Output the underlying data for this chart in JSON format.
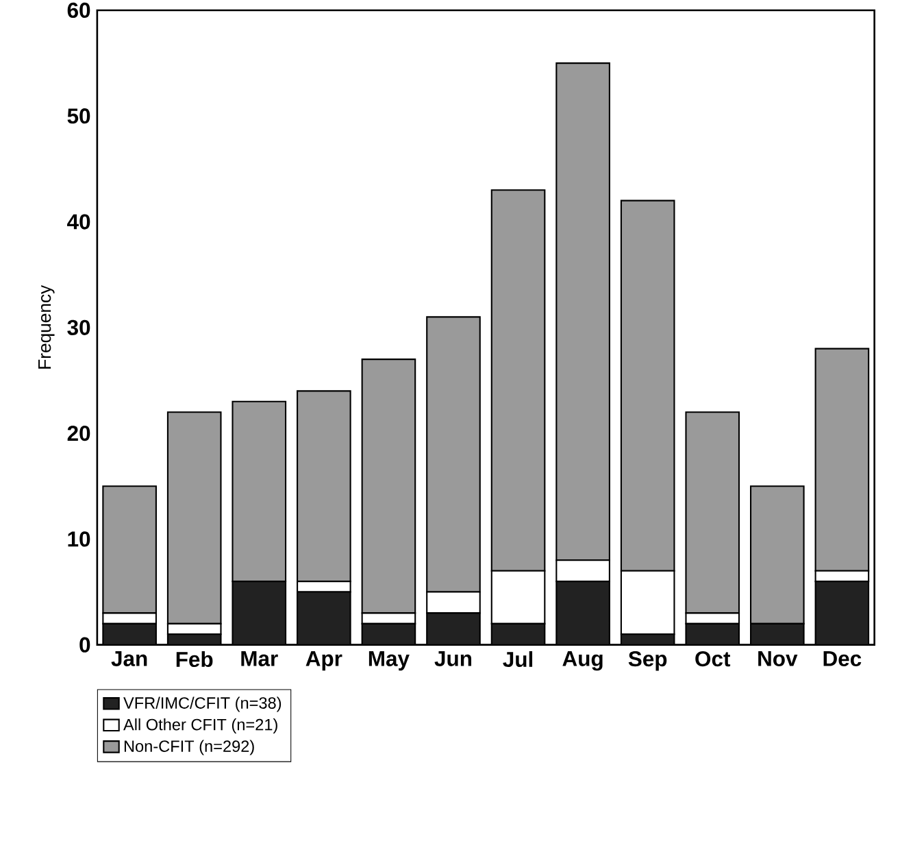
{
  "chart_data": {
    "type": "bar",
    "ylabel": "Frequency",
    "stacked": true,
    "categories": [
      "Jan",
      "Feb",
      "Mar",
      "Apr",
      "May",
      "Jun",
      "Jul",
      "Aug",
      "Sep",
      "Oct",
      "Nov",
      "Dec"
    ],
    "series": [
      {
        "name": "VFR/IMC/CFIT (n=38)",
        "color": "#222222",
        "values": [
          2,
          1,
          6,
          5,
          2,
          3,
          2,
          6,
          1,
          2,
          2,
          6
        ]
      },
      {
        "name": "All Other CFIT (n=21)",
        "color": "#ffffff",
        "values": [
          1,
          1,
          0,
          1,
          1,
          2,
          5,
          2,
          6,
          1,
          0,
          1
        ]
      },
      {
        "name": "Non-CFIT (n=292)",
        "color": "#9a9a9a",
        "values": [
          12,
          20,
          17,
          18,
          24,
          26,
          36,
          47,
          35,
          19,
          13,
          21
        ]
      }
    ],
    "ylim": [
      0,
      60
    ],
    "yticks": [
      0,
      10,
      20,
      30,
      40,
      50,
      60
    ],
    "grid": false,
    "legend": "bottom left"
  }
}
